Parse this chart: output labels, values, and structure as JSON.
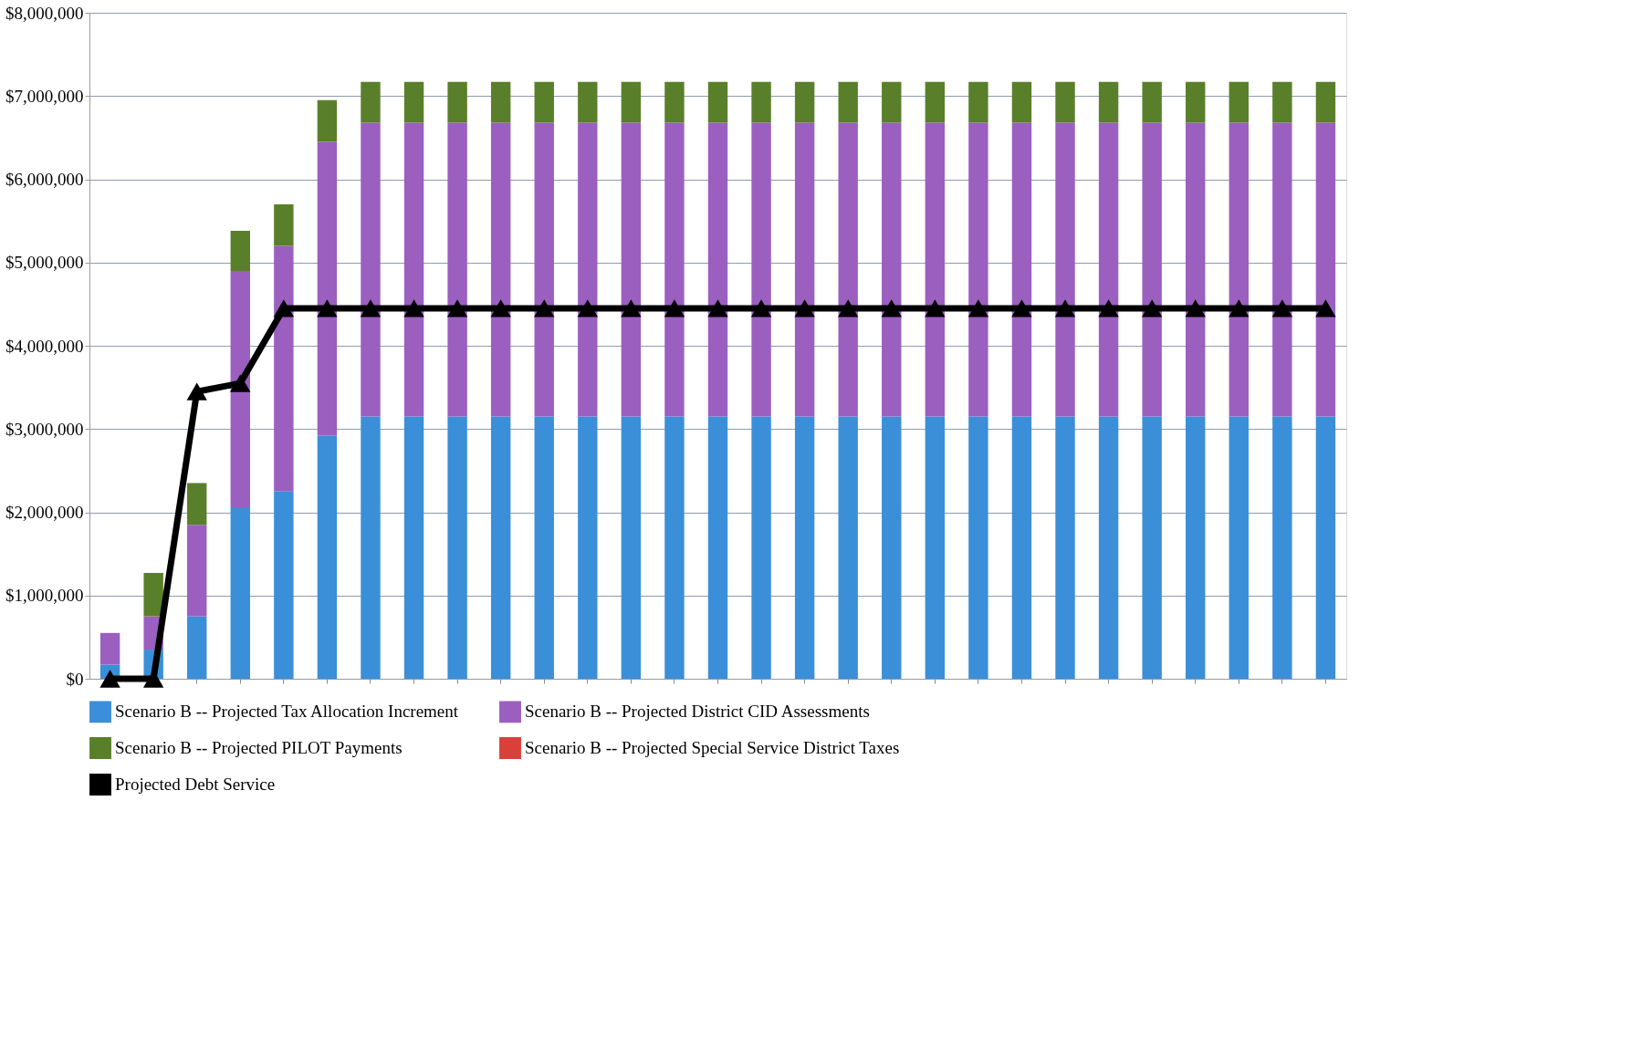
{
  "chart_data": {
    "type": "bar",
    "stacked": true,
    "categories": [
      null,
      null,
      null,
      null,
      null,
      null,
      null,
      null,
      null,
      null,
      null,
      null,
      null,
      null,
      null,
      null,
      null,
      null,
      null,
      null,
      null,
      null,
      null,
      null,
      null,
      null,
      null,
      null,
      null
    ],
    "series": [
      {
        "name": "Scenario B -- Projected Tax Allocation Increment",
        "color": "#3a8fd8",
        "values": [
          170000,
          350000,
          750000,
          2050000,
          2250000,
          2920000,
          3150000,
          3150000,
          3150000,
          3150000,
          3150000,
          3150000,
          3150000,
          3150000,
          3150000,
          3150000,
          3150000,
          3150000,
          3150000,
          3150000,
          3150000,
          3150000,
          3150000,
          3150000,
          3150000,
          3150000,
          3150000,
          3150000,
          3150000
        ]
      },
      {
        "name": "Scenario B -- Projected District CID Assessments",
        "color": "#9b5fc0",
        "values": [
          380000,
          400000,
          1100000,
          2850000,
          2950000,
          3530000,
          3530000,
          3530000,
          3530000,
          3530000,
          3530000,
          3530000,
          3530000,
          3530000,
          3530000,
          3530000,
          3530000,
          3530000,
          3530000,
          3530000,
          3530000,
          3530000,
          3530000,
          3530000,
          3530000,
          3530000,
          3530000,
          3530000,
          3530000
        ]
      },
      {
        "name": "Scenario B -- Projected PILOT Payments",
        "color": "#5a7f2a",
        "values": [
          0,
          520000,
          500000,
          480000,
          500000,
          500000,
          490000,
          490000,
          490000,
          490000,
          490000,
          490000,
          490000,
          490000,
          490000,
          490000,
          490000,
          490000,
          490000,
          490000,
          490000,
          490000,
          490000,
          490000,
          490000,
          490000,
          490000,
          490000,
          490000
        ]
      },
      {
        "name": "Scenario B -- Projected Special Service District Taxes",
        "color": "#d9403a",
        "values": [
          0,
          0,
          0,
          0,
          0,
          0,
          0,
          0,
          0,
          0,
          0,
          0,
          0,
          0,
          0,
          0,
          0,
          0,
          0,
          0,
          0,
          0,
          0,
          0,
          0,
          0,
          0,
          0,
          0
        ]
      },
      {
        "name": "Projected Debt Service",
        "type": "line",
        "color": "#000000",
        "marker": "triangle",
        "values": [
          0,
          0,
          3450000,
          3550000,
          4450000,
          4450000,
          4450000,
          4450000,
          4450000,
          4450000,
          4450000,
          4450000,
          4450000,
          4450000,
          4450000,
          4450000,
          4450000,
          4450000,
          4450000,
          4450000,
          4450000,
          4450000,
          4450000,
          4450000,
          4450000,
          4450000,
          4450000,
          4450000,
          4450000
        ]
      }
    ],
    "ylim": [
      0,
      8000000
    ],
    "yticks": [
      {
        "value": 0,
        "label": "$0"
      },
      {
        "value": 1000000,
        "label": "$1,000,000"
      },
      {
        "value": 2000000,
        "label": "$2,000,000"
      },
      {
        "value": 3000000,
        "label": "$3,000,000"
      },
      {
        "value": 4000000,
        "label": "$4,000,000"
      },
      {
        "value": 5000000,
        "label": "$5,000,000"
      },
      {
        "value": 6000000,
        "label": "$6,000,000"
      },
      {
        "value": 7000000,
        "label": "$7,000,000"
      },
      {
        "value": 8000000,
        "label": "$8,000,000"
      }
    ],
    "grid": "y",
    "legend": "bottom",
    "tick_labels": "y"
  }
}
